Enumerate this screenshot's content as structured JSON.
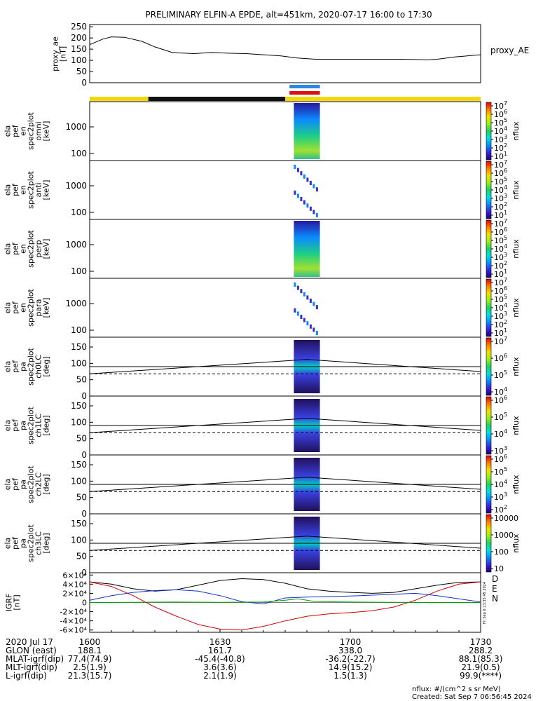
{
  "title": "PRELIMINARY ELFIN-A EPDE, alt=451km, 2020-07-17 16:00 to 17:30",
  "proxy_ae": {
    "ylabel_lines": [
      "proxy_ae",
      "[nT]"
    ],
    "yticks": [
      "0",
      "50",
      "100",
      "150",
      "200",
      "250"
    ],
    "ylim": [
      0,
      260
    ],
    "legend": "proxy_AE"
  },
  "spectrogram_panels": [
    {
      "ylabel_lines": [
        "ela",
        "pef",
        "en",
        "spec2plot",
        "omni",
        "[keV]"
      ],
      "yticks": [
        "100",
        "1000"
      ],
      "cbar_ticks": [
        "10",
        "10",
        "10",
        "10",
        "10",
        "10",
        "10"
      ],
      "cbar_exps": [
        "1",
        "2",
        "3",
        "4",
        "5",
        "6",
        "7"
      ],
      "cbar_label": "nflux"
    },
    {
      "ylabel_lines": [
        "ela",
        "pef",
        "en",
        "spec2plot",
        "anti",
        "[keV]"
      ],
      "yticks": [
        "100",
        "1000"
      ],
      "cbar_ticks": [
        "10",
        "10",
        "10",
        "10",
        "10",
        "10",
        "10"
      ],
      "cbar_exps": [
        "1",
        "2",
        "3",
        "4",
        "5",
        "6",
        "7"
      ],
      "cbar_label": "nflux"
    },
    {
      "ylabel_lines": [
        "ela",
        "pef",
        "en",
        "spec2plot",
        "perp",
        "[keV]"
      ],
      "yticks": [
        "100",
        "1000"
      ],
      "cbar_ticks": [
        "10",
        "10",
        "10",
        "10",
        "10",
        "10",
        "10"
      ],
      "cbar_exps": [
        "1",
        "2",
        "3",
        "4",
        "5",
        "6",
        "7"
      ],
      "cbar_label": "nflux"
    },
    {
      "ylabel_lines": [
        "ela",
        "pef",
        "en",
        "spec2plot",
        "para",
        "[keV]"
      ],
      "yticks": [
        "100",
        "1000"
      ],
      "cbar_ticks": [
        "10",
        "10",
        "10",
        "10",
        "10",
        "10",
        "10"
      ],
      "cbar_exps": [
        "1",
        "2",
        "3",
        "4",
        "5",
        "6",
        "7"
      ],
      "cbar_label": "nflux"
    }
  ],
  "pitch_panels": [
    {
      "ylabel_lines": [
        "ela",
        "pef",
        "pa",
        "spec2plot",
        "ch0LC",
        "[deg]"
      ],
      "yticks": [
        "0",
        "50",
        "100",
        "150"
      ],
      "cbar_ticks": [
        "10",
        "10",
        "10",
        "10"
      ],
      "cbar_exps": [
        "4",
        "5",
        "6",
        "7"
      ],
      "cbar_label": "nflux"
    },
    {
      "ylabel_lines": [
        "ela",
        "pef",
        "pa",
        "spec2plot",
        "ch1LC",
        "[deg]"
      ],
      "yticks": [
        "0",
        "50",
        "100",
        "150"
      ],
      "cbar_ticks": [
        "10",
        "10",
        "10",
        "10"
      ],
      "cbar_exps": [
        "3",
        "4",
        "5",
        "6"
      ],
      "cbar_label": "nflux"
    },
    {
      "ylabel_lines": [
        "ela",
        "pef",
        "pa",
        "spec2plot",
        "ch2LC",
        "[deg]"
      ],
      "yticks": [
        "0",
        "50",
        "100",
        "150"
      ],
      "cbar_ticks": [
        "10",
        "10",
        "10",
        "10",
        "10"
      ],
      "cbar_exps": [
        "2",
        "3",
        "4",
        "5",
        "6"
      ],
      "cbar_label": "nflux"
    },
    {
      "ylabel_lines": [
        "ela",
        "pef",
        "pa",
        "spec2plot",
        "ch3LC",
        "[deg]"
      ],
      "yticks": [
        "0",
        "50",
        "100",
        "150"
      ],
      "cbar_ticks": [
        "10",
        "100",
        "1000",
        "10000"
      ],
      "cbar_exps": [
        "",
        "",
        "",
        ""
      ],
      "cbar_label": "nflux"
    }
  ],
  "igrf": {
    "ylabel_lines": [
      "IGRF",
      "[nT]"
    ],
    "yticks": [
      "-6×10⁴",
      "-4×10⁴",
      "-2×10⁴",
      "0",
      "2×10⁴",
      "4×10⁴",
      "6×10⁴"
    ],
    "legend": [
      "D",
      "E",
      "N"
    ],
    "legend_colors": [
      "#d00000",
      "#00a000",
      "#1030d0"
    ],
    "side_note": "Fri Sep 6 23:35:45 2024"
  },
  "xaxis": {
    "rows": [
      {
        "label": "2020 Jul 17",
        "values": [
          "1600",
          "1630",
          "1700",
          "1730"
        ]
      },
      {
        "label": "GLON (east)",
        "values": [
          "188.1",
          "161.7",
          "338.0",
          "288.2"
        ]
      },
      {
        "label": "MLAT-igrf(dip)",
        "values": [
          "77.4(74.9)",
          "-45.4(-40.8)",
          "-36.2(-22.7)",
          "88.1(85.3)"
        ]
      },
      {
        "label": "MLT-igrf(dip)",
        "values": [
          "2.5(1.9)",
          "3.6(3.6)",
          "14.9(15.2)",
          "21.9(0.5)"
        ]
      },
      {
        "label": "L-igrf(dip)",
        "values": [
          "21.3(15.7)",
          "2.1(1.9)",
          "1.5(1.3)",
          "99.9(****)"
        ]
      }
    ]
  },
  "footer": {
    "units": "nflux: #/(cm^2 s sr MeV)",
    "created": "Created: Sat Sep  7 06:56:45 2024"
  },
  "chart_data": [
    {
      "type": "line",
      "title": "PRELIMINARY ELFIN-A EPDE, alt=451km, 2020-07-17 16:00 to 17:30",
      "ylabel": "proxy_ae [nT]",
      "xlim": [
        0,
        90
      ],
      "ylim": [
        0,
        260
      ],
      "series": [
        {
          "name": "proxy_AE",
          "color": "#000000",
          "x": [
            0,
            3,
            5,
            8,
            12,
            15,
            19,
            24,
            28,
            32,
            36,
            40,
            44,
            48,
            52,
            56,
            62,
            68,
            72,
            76,
            78,
            80,
            82,
            84,
            86,
            88,
            90
          ],
          "y": [
            170,
            195,
            205,
            203,
            185,
            160,
            135,
            130,
            135,
            132,
            130,
            125,
            120,
            110,
            105,
            105,
            105,
            105,
            105,
            103,
            102,
            105,
            110,
            115,
            118,
            122,
            125
          ]
        }
      ]
    },
    {
      "type": "line",
      "ylabel": "IGRF [nT]",
      "xlim": [
        0,
        90
      ],
      "ylim": [
        -65000,
        65000
      ],
      "series": [
        {
          "name": "black",
          "color": "#000000",
          "x": [
            0,
            5,
            10,
            15,
            20,
            25,
            30,
            35,
            40,
            45,
            50,
            55,
            60,
            65,
            70,
            75,
            80,
            85,
            90
          ],
          "y": [
            45000,
            40000,
            30000,
            25000,
            28000,
            38000,
            48000,
            52000,
            50000,
            42000,
            30000,
            25000,
            22000,
            20000,
            22000,
            30000,
            38000,
            44000,
            45000
          ]
        },
        {
          "name": "D",
          "color": "#d00000",
          "x": [
            0,
            5,
            10,
            15,
            20,
            25,
            30,
            35,
            40,
            45,
            50,
            55,
            60,
            65,
            70,
            75,
            80,
            85,
            90
          ],
          "y": [
            45000,
            35000,
            15000,
            -10000,
            -30000,
            -48000,
            -58000,
            -60000,
            -52000,
            -40000,
            -30000,
            -25000,
            -22000,
            -18000,
            -10000,
            5000,
            25000,
            40000,
            45000
          ]
        },
        {
          "name": "N",
          "color": "#1030d0",
          "x": [
            0,
            5,
            10,
            15,
            20,
            25,
            30,
            35,
            40,
            45,
            50,
            55,
            60,
            65,
            70,
            75,
            80,
            85,
            90
          ],
          "y": [
            5000,
            15000,
            22000,
            26000,
            28000,
            25000,
            15000,
            2000,
            -3000,
            10000,
            12000,
            13000,
            14000,
            16000,
            18000,
            20000,
            15000,
            8000,
            1000
          ]
        },
        {
          "name": "E",
          "color": "#00a000",
          "x": [
            0,
            10,
            20,
            30,
            40,
            45,
            48,
            52,
            60,
            70,
            80,
            90
          ],
          "y": [
            0,
            500,
            1000,
            500,
            1000,
            5000,
            8000,
            2000,
            1000,
            500,
            0,
            0
          ]
        }
      ]
    }
  ]
}
